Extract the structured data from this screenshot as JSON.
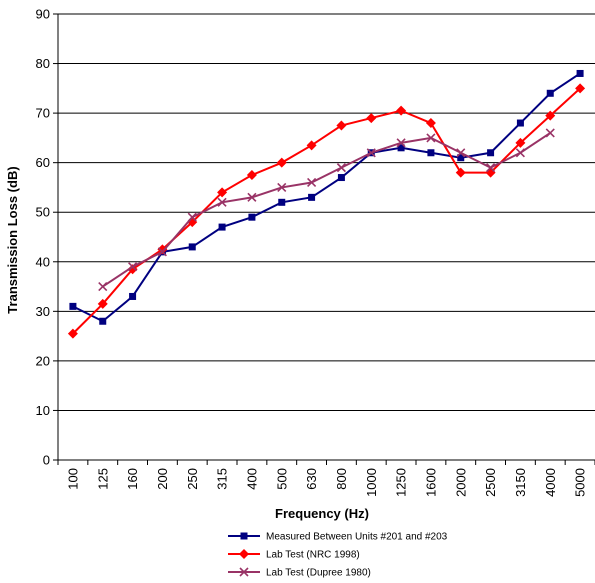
{
  "chart_data": {
    "type": "line",
    "xlabel": "Frequency (Hz)",
    "ylabel": "Transmission Loss (dB)",
    "ylim": [
      0,
      90
    ],
    "yticks": [
      0,
      10,
      20,
      30,
      40,
      50,
      60,
      70,
      80,
      90
    ],
    "grid": "horizontal",
    "legend_position": "bottom",
    "categories": [
      "100",
      "125",
      "160",
      "200",
      "250",
      "315",
      "400",
      "500",
      "630",
      "800",
      "1000",
      "1250",
      "1600",
      "2000",
      "2500",
      "3150",
      "4000",
      "5000"
    ],
    "series": [
      {
        "name": "Measured Between Units #201 and #203",
        "color": "#000080",
        "marker": "square",
        "values": [
          31,
          28,
          33,
          42,
          43,
          47,
          49,
          52,
          53,
          57,
          62,
          63,
          62,
          61,
          62,
          68,
          74,
          78
        ]
      },
      {
        "name": "Lab Test (NRC 1998)",
        "color": "#ff0000",
        "marker": "diamond",
        "values": [
          25.5,
          31.5,
          38.5,
          42.5,
          48,
          54,
          57.5,
          60,
          63.5,
          67.5,
          69,
          70.5,
          68,
          58,
          58,
          64,
          69.5,
          75
        ]
      },
      {
        "name": "Lab Test (Dupree 1980)",
        "color": "#993366",
        "marker": "x",
        "values": [
          null,
          35,
          39,
          42,
          49,
          52,
          53,
          55,
          56,
          59,
          62,
          64,
          65,
          62,
          59,
          62,
          66,
          null
        ]
      }
    ]
  }
}
